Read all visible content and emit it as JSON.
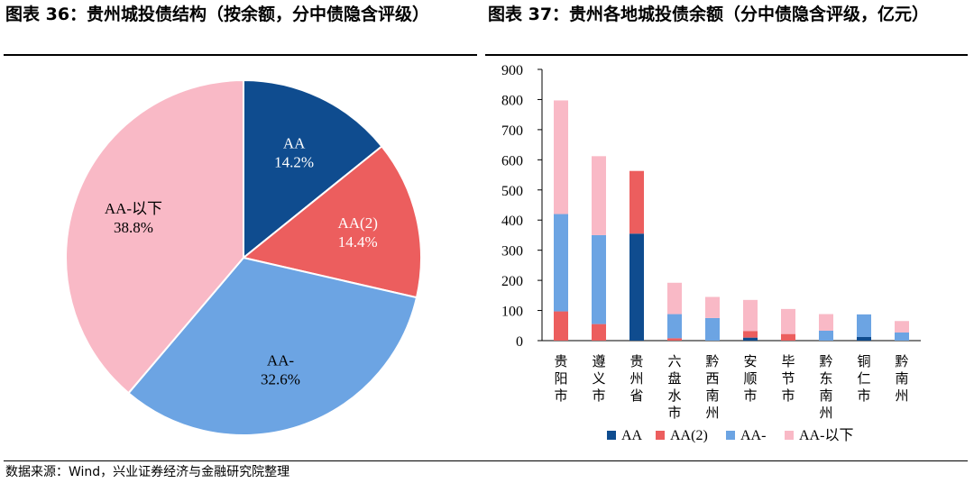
{
  "titles": {
    "left": "图表 36：贵州城投债结构（按余额，分中债隐含评级）",
    "right": "图表 37：贵州各地城投债余额（分中债隐含评级，亿元）"
  },
  "source": "数据来源：Wind，兴业证券经济与金融研究院整理",
  "colors": {
    "AA": "#0f4c8f",
    "AA(2)": "#ec5e5e",
    "AA-": "#6ca4e3",
    "AA-以下": "#f9b9c6"
  },
  "chart_data": [
    {
      "type": "pie",
      "labels": [
        "AA",
        "AA(2)",
        "AA-",
        "AA-以下"
      ],
      "values": [
        14.2,
        14.4,
        32.6,
        38.8
      ],
      "value_labels": [
        "14.2%",
        "14.4%",
        "32.6%",
        "38.8%"
      ],
      "start": "12 o'clock, clockwise",
      "legend": "none (labels on slices)"
    },
    {
      "type": "bar",
      "stacked": true,
      "categories": [
        "贵阳市",
        "遵义市",
        "贵州省",
        "六盘水市",
        "黔西南州",
        "安顺市",
        "毕节市",
        "黔东南州",
        "铜仁市",
        "黔南州"
      ],
      "series": [
        {
          "name": "AA",
          "values": [
            0,
            0,
            355,
            0,
            0,
            10,
            0,
            0,
            12,
            0
          ]
        },
        {
          "name": "AA(2)",
          "values": [
            97,
            55,
            208,
            8,
            0,
            22,
            22,
            0,
            0,
            0
          ]
        },
        {
          "name": "AA-",
          "values": [
            323,
            295,
            0,
            80,
            75,
            0,
            0,
            33,
            75,
            27
          ]
        },
        {
          "name": "AA-以下",
          "values": [
            377,
            262,
            0,
            104,
            70,
            103,
            83,
            55,
            0,
            38
          ]
        }
      ],
      "ylim": [
        0,
        900
      ],
      "yticks": [
        "0",
        "100",
        "200",
        "300",
        "400",
        "500",
        "600",
        "700",
        "800",
        "900"
      ],
      "legend": "bottom",
      "grid": false
    }
  ]
}
